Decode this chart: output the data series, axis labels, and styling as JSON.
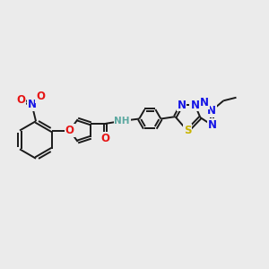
{
  "bg_color": "#ebebeb",
  "bond_color": "#1a1a1a",
  "bond_width": 1.4,
  "atom_colors": {
    "C": "#1a1a1a",
    "H": "#5ba8a0",
    "N": "#1414e6",
    "O": "#e61414",
    "S": "#c8b400"
  },
  "font_size": 8.5
}
